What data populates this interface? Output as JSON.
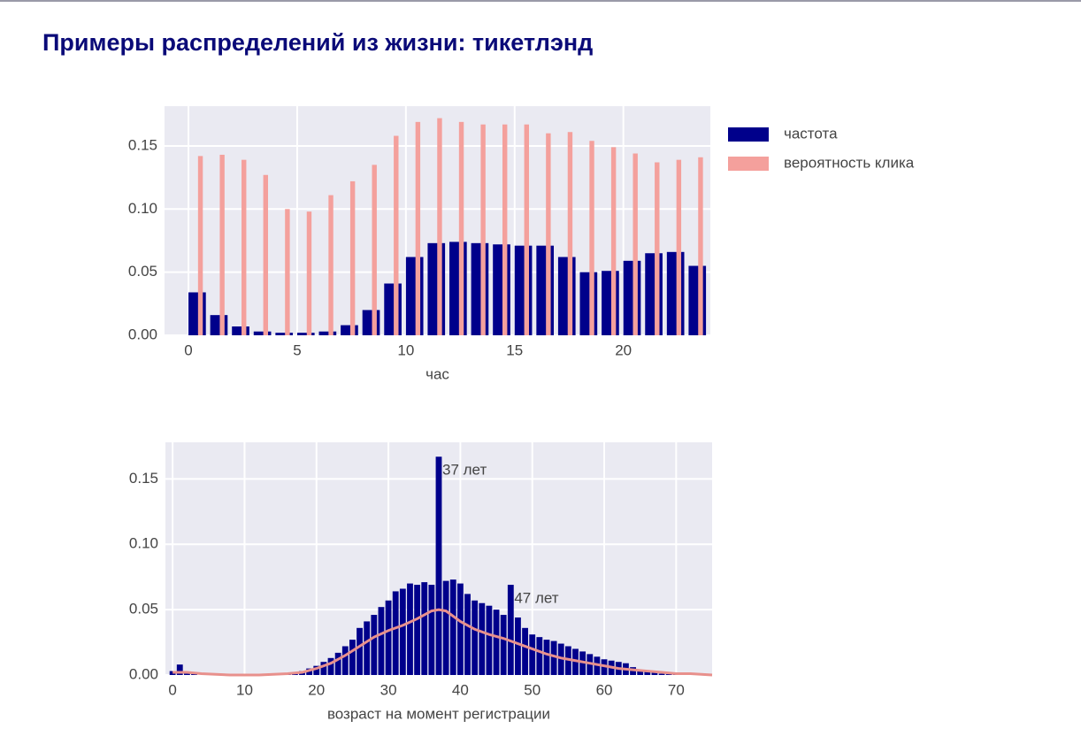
{
  "title": "Примеры распределений из жизни: тикетлэнд",
  "chart_data": [
    {
      "type": "bar",
      "xlabel": "час",
      "x": [
        0,
        1,
        2,
        3,
        4,
        5,
        6,
        7,
        8,
        9,
        10,
        11,
        12,
        13,
        14,
        15,
        16,
        17,
        18,
        19,
        20,
        21,
        22,
        23
      ],
      "series": [
        {
          "name": "частота",
          "color": "#00008b",
          "values": [
            0.034,
            0.016,
            0.007,
            0.003,
            0.002,
            0.002,
            0.003,
            0.008,
            0.02,
            0.041,
            0.062,
            0.073,
            0.074,
            0.073,
            0.072,
            0.071,
            0.071,
            0.062,
            0.05,
            0.051,
            0.059,
            0.065,
            0.066,
            0.055
          ]
        },
        {
          "name": "вероятность клика",
          "color": "#f4a09c",
          "values": [
            0.142,
            0.143,
            0.139,
            0.127,
            0.1,
            0.098,
            0.111,
            0.122,
            0.135,
            0.158,
            0.169,
            0.172,
            0.169,
            0.167,
            0.167,
            0.167,
            0.16,
            0.161,
            0.154,
            0.149,
            0.144,
            0.137,
            0.139,
            0.141
          ]
        }
      ],
      "xlim": [
        -1.1,
        24
      ],
      "xticks": [
        0,
        5,
        10,
        15,
        20
      ],
      "ylim": [
        0,
        0.1815
      ],
      "yticks": [
        {
          "value": 0,
          "label": "0.00"
        },
        {
          "value": 0.05,
          "label": "0.05"
        },
        {
          "value": 0.1,
          "label": "0.10"
        },
        {
          "value": 0.15,
          "label": "0.15"
        }
      ],
      "grid": true,
      "legend": "outside right"
    },
    {
      "type": "histogram",
      "xlabel": "возраст на момент регистрации",
      "series": [
        {
          "type": "bar",
          "color": "#00008b",
          "x": [
            0,
            1,
            2,
            3,
            4,
            5,
            6,
            7,
            8,
            9,
            10,
            11,
            12,
            13,
            14,
            15,
            16,
            17,
            18,
            19,
            20,
            21,
            22,
            23,
            24,
            25,
            26,
            27,
            28,
            29,
            30,
            31,
            32,
            33,
            34,
            35,
            36,
            37,
            38,
            39,
            40,
            41,
            42,
            43,
            44,
            45,
            46,
            47,
            48,
            49,
            50,
            51,
            52,
            53,
            54,
            55,
            56,
            57,
            58,
            59,
            60,
            61,
            62,
            63,
            64,
            65,
            66,
            67,
            68,
            69,
            70,
            71,
            72,
            73
          ],
          "values": [
            0.003,
            0.008,
            0.001,
            0.001,
            0,
            0,
            0,
            0,
            0,
            0,
            0,
            0,
            0,
            0,
            0,
            0,
            0.001,
            0.002,
            0.003,
            0.005,
            0.007,
            0.01,
            0.013,
            0.017,
            0.022,
            0.027,
            0.036,
            0.041,
            0.046,
            0.052,
            0.057,
            0.064,
            0.066,
            0.07,
            0.069,
            0.071,
            0.069,
            0.167,
            0.072,
            0.073,
            0.07,
            0.062,
            0.057,
            0.055,
            0.053,
            0.05,
            0.046,
            0.069,
            0.044,
            0.036,
            0.031,
            0.029,
            0.027,
            0.026,
            0.024,
            0.022,
            0.02,
            0.018,
            0.016,
            0.014,
            0.012,
            0.011,
            0.01,
            0.009,
            0.006,
            0.004,
            0.003,
            0.002,
            0.001,
            0.001,
            0.001,
            0,
            0,
            0
          ]
        },
        {
          "type": "line",
          "color": "#e8908c",
          "x": [
            0,
            2,
            4,
            8,
            12,
            16,
            18,
            20,
            22,
            24,
            26,
            28,
            30,
            32,
            34,
            36,
            37,
            38,
            40,
            42,
            44,
            46,
            48,
            50,
            52,
            54,
            56,
            58,
            60,
            62,
            64,
            66,
            68,
            70,
            72,
            75
          ],
          "values": [
            0.002,
            0.002,
            0.001,
            0,
            0,
            0.001,
            0.002,
            0.005,
            0.009,
            0.015,
            0.022,
            0.029,
            0.034,
            0.038,
            0.043,
            0.049,
            0.05,
            0.049,
            0.041,
            0.035,
            0.031,
            0.028,
            0.024,
            0.02,
            0.016,
            0.013,
            0.011,
            0.009,
            0.007,
            0.005,
            0.004,
            0.003,
            0.002,
            0.001,
            0.001,
            0
          ]
        }
      ],
      "annotations": [
        {
          "text": "37 лет",
          "x": 37
        },
        {
          "text": "47 лет",
          "x": 47
        }
      ],
      "xlim": [
        -1,
        75
      ],
      "xticks": [
        0,
        10,
        20,
        30,
        40,
        50,
        60,
        70
      ],
      "ylim": [
        0,
        0.178
      ],
      "yticks": [
        {
          "value": 0,
          "label": "0.00"
        },
        {
          "value": 0.05,
          "label": "0.05"
        },
        {
          "value": 0.1,
          "label": "0.10"
        },
        {
          "value": 0.15,
          "label": "0.15"
        }
      ],
      "grid": true
    }
  ]
}
